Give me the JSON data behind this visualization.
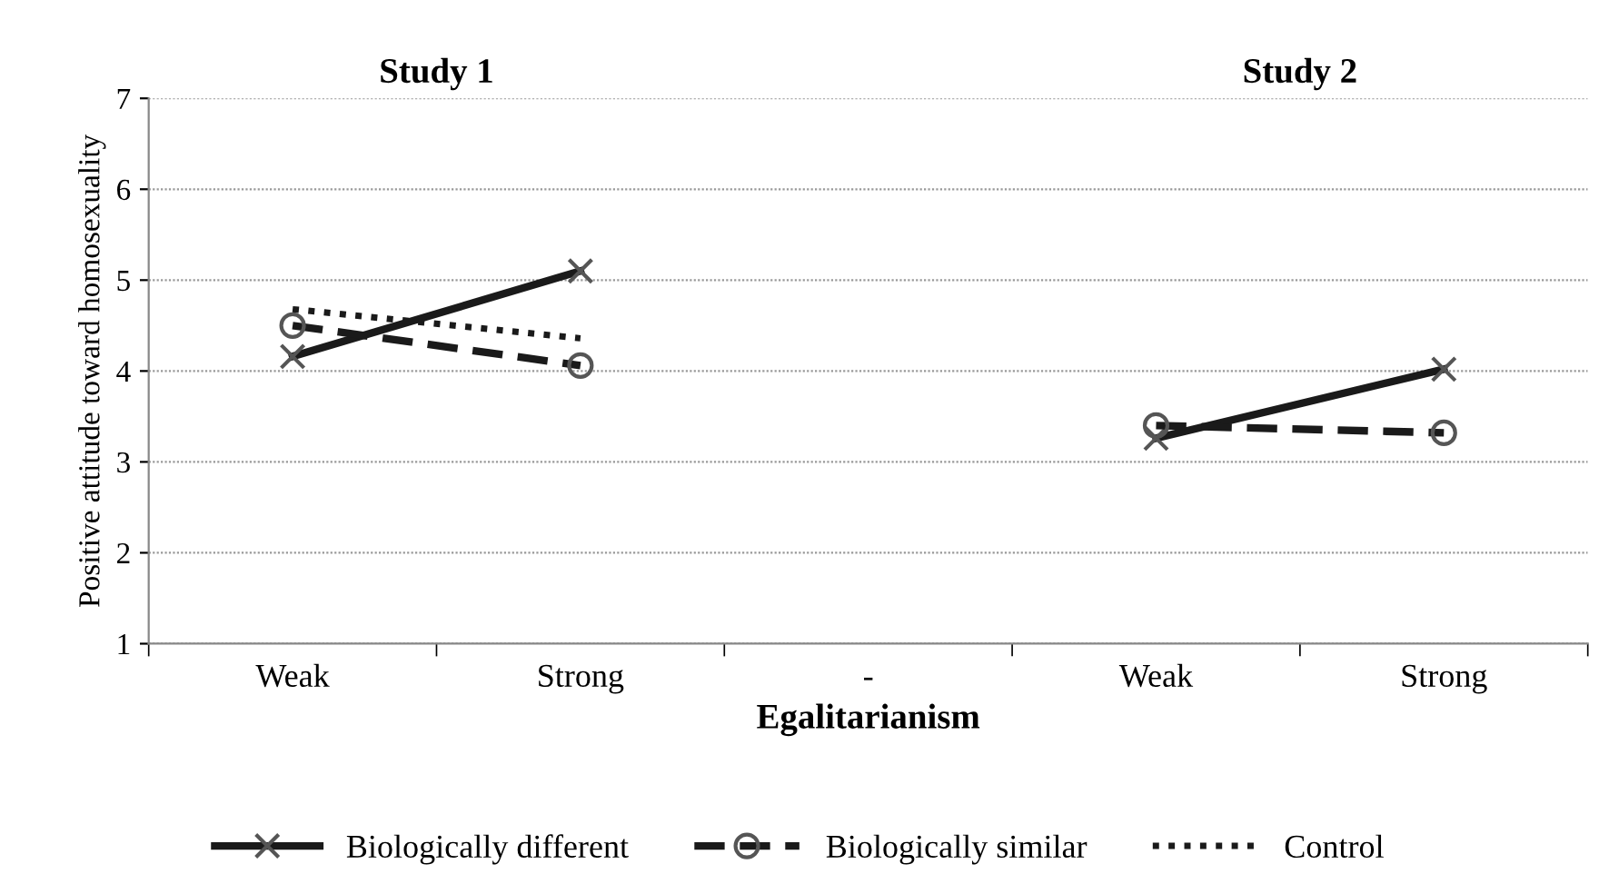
{
  "chart_data": {
    "type": "line",
    "categories": [
      "Weak",
      "Strong",
      "-",
      "Weak",
      "Strong"
    ],
    "series": [
      {
        "name": "Biologically different",
        "color": "#1a1a1a",
        "marker": "cross",
        "line_style": "solid",
        "values": [
          4.16,
          5.1,
          null,
          3.26,
          4.02
        ]
      },
      {
        "name": "Biologically similar",
        "color": "#1a1a1a",
        "marker": "circle",
        "line_style": "dashed",
        "values": [
          4.5,
          4.06,
          null,
          3.4,
          3.32
        ]
      },
      {
        "name": "Control",
        "color": "#1a1a1a",
        "marker": "none",
        "line_style": "dotted",
        "values": [
          4.68,
          4.36,
          null,
          null,
          null
        ]
      }
    ],
    "xlabel": "Egalitarianism",
    "ylabel": "Positive attitude toward homosexuality",
    "annotations": [
      "Study 1",
      "Study 2"
    ],
    "ylim": [
      1,
      7
    ],
    "yticks": [
      1,
      2,
      3,
      4,
      5,
      6,
      7
    ],
    "grid": "y",
    "legend": "bottom"
  }
}
